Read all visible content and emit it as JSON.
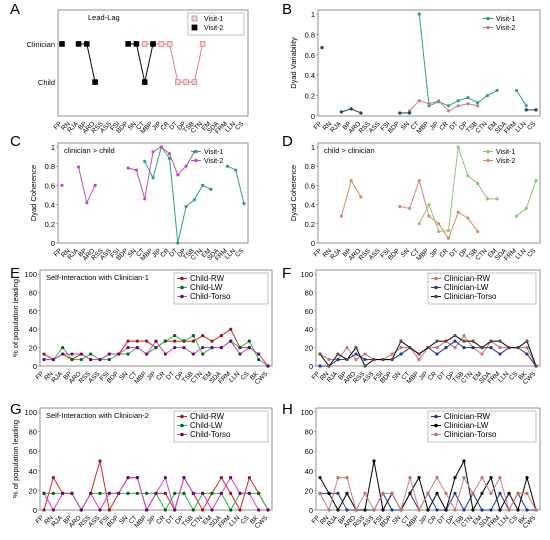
{
  "chart_data": [
    {
      "id": "A",
      "type": "line",
      "title": "Lead-Lag",
      "categories": [
        "FP",
        "RN",
        "RJA",
        "BP",
        "ARO",
        "RSS",
        "ASS",
        "FSI",
        "BDP",
        "SN",
        "CT",
        "MBP",
        "JIP",
        "CR",
        "DT",
        "DP",
        "TSB",
        "CTN",
        "EM",
        "SDA",
        "FRM",
        "LLN",
        "CS"
      ],
      "yticks": [
        "Child",
        "Clinician"
      ],
      "ylim": [
        0,
        1
      ],
      "series": [
        {
          "name": "Visit-1",
          "color": "#e07b7b",
          "marker": "#e8c3c3",
          "values": [
            null,
            null,
            null,
            null,
            null,
            null,
            null,
            null,
            null,
            null,
            1,
            1,
            1,
            1,
            0,
            0,
            0,
            1,
            null,
            null,
            null,
            null,
            null
          ]
        },
        {
          "name": "Visit-2",
          "color": "#000000",
          "marker": "#000000",
          "values": [
            1,
            null,
            1,
            1,
            0,
            null,
            null,
            null,
            1,
            1,
            0,
            1,
            null,
            null,
            null,
            null,
            null,
            null,
            null,
            null,
            null,
            null,
            null
          ]
        }
      ],
      "legend": "top-right"
    },
    {
      "id": "B",
      "type": "line",
      "ylabel": "Dyad Variability",
      "categories": [
        "FP",
        "RN",
        "RJA",
        "BP",
        "ARO",
        "RSS",
        "ASS",
        "FSI",
        "BDP",
        "SN",
        "CT",
        "MBP",
        "JIP",
        "CR",
        "DT",
        "DP",
        "TSB",
        "CTN",
        "EM",
        "SDA",
        "FRM",
        "LLN",
        "CS"
      ],
      "yticks": [
        0,
        0.2,
        0.4,
        0.6,
        0.8,
        1
      ],
      "ylim": [
        0,
        1
      ],
      "series": [
        {
          "name": "Visit-1",
          "color": "#2e9e88",
          "values": [
            null,
            null,
            null,
            null,
            null,
            null,
            null,
            null,
            null,
            null,
            1.0,
            0.1,
            0.14,
            0.1,
            0.15,
            0.18,
            0.13,
            0.2,
            0.25,
            null,
            0.25,
            0.1,
            null
          ]
        },
        {
          "name": "Visit-2",
          "color": "#c77f7f",
          "values": [
            null,
            null,
            null,
            null,
            null,
            null,
            null,
            null,
            null,
            0.05,
            0.15,
            0.12,
            0.15,
            0.05,
            0.1,
            0.12,
            0.1,
            null,
            null,
            null,
            null,
            null,
            0.06
          ]
        },
        {
          "name": "",
          "color": "#1e3f5a",
          "values": [
            0.67,
            null,
            0.04,
            0.07,
            0.03,
            null,
            null,
            null,
            0.03,
            0.03,
            null,
            null,
            null,
            null,
            null,
            null,
            null,
            null,
            null,
            null,
            null,
            0.06,
            0.06
          ]
        }
      ],
      "legend": "top-right"
    },
    {
      "id": "C",
      "type": "line",
      "title": "clinician > child",
      "ylabel": "Dyad Coherence",
      "categories": [
        "FP",
        "RN",
        "RJA",
        "BP",
        "ARO",
        "RSS",
        "ASS",
        "FSI",
        "BDP",
        "SN",
        "CT",
        "MBP",
        "JIP",
        "CR",
        "DT",
        "DP",
        "TSB",
        "CTN",
        "EM",
        "SDA",
        "FRM",
        "LLN",
        "CS"
      ],
      "yticks": [
        0,
        0.2,
        0.4,
        0.6,
        0.8,
        1
      ],
      "ylim": [
        0,
        1
      ],
      "series": [
        {
          "name": "Visit-1",
          "color": "#2e9e88",
          "values": [
            null,
            null,
            null,
            null,
            null,
            null,
            null,
            null,
            null,
            null,
            0.85,
            0.68,
            1.0,
            0.88,
            0.0,
            0.38,
            0.45,
            0.6,
            0.56,
            null,
            0.8,
            0.76,
            0.41
          ]
        },
        {
          "name": "Visit-2",
          "color": "#c04bc0",
          "values": [
            0.6,
            null,
            0.79,
            0.42,
            0.6,
            null,
            null,
            null,
            0.78,
            0.76,
            0.46,
            0.95,
            1.0,
            0.93,
            0.71,
            0.8,
            0.95,
            null,
            null,
            null,
            null,
            null,
            null
          ]
        }
      ],
      "legend": "top-right"
    },
    {
      "id": "D",
      "type": "line",
      "title": "child > clinician",
      "ylabel": "Dyad Coherence",
      "categories": [
        "FP",
        "RN",
        "RJA",
        "BP",
        "ARO",
        "RSS",
        "ASS",
        "FSI",
        "BDP",
        "SN",
        "CT",
        "MBP",
        "JIP",
        "CR",
        "DT",
        "DP",
        "TSB",
        "CTN",
        "EM",
        "SDA",
        "FRM",
        "LLN",
        "CS"
      ],
      "yticks": [
        0,
        0.2,
        0.4,
        0.6,
        0.8,
        1
      ],
      "ylim": [
        0,
        1
      ],
      "series": [
        {
          "name": "Visit-1",
          "color": "#8cc47a",
          "values": [
            null,
            null,
            null,
            null,
            null,
            null,
            null,
            null,
            null,
            null,
            0.2,
            0.4,
            0.12,
            0.13,
            1.0,
            0.7,
            0.62,
            0.46,
            0.46,
            null,
            0.28,
            0.36,
            0.65
          ]
        },
        {
          "name": "Visit-2",
          "color": "#d98a6a",
          "values": [
            null,
            null,
            0.28,
            0.65,
            0.48,
            null,
            null,
            null,
            0.38,
            0.36,
            0.65,
            0.28,
            0.2,
            0.05,
            0.32,
            0.26,
            0.12,
            null,
            null,
            null,
            null,
            null,
            null
          ]
        }
      ],
      "legend": "top-right"
    },
    {
      "id": "E",
      "type": "line",
      "title": "Self-Interaction with Clinician-1",
      "ylabel": "% of population leading",
      "categories": [
        "FP",
        "RN",
        "RJA",
        "BP",
        "ARO",
        "RSS",
        "ASS",
        "FSI",
        "BDP",
        "SN",
        "CT",
        "MBP",
        "JIP",
        "CR",
        "DT",
        "DP",
        "TSB",
        "CTN",
        "EM",
        "SDA",
        "FRM",
        "LLN",
        "CS",
        "BK",
        "CWS"
      ],
      "yticks": [
        0,
        20,
        40,
        60,
        80,
        100
      ],
      "ylim": [
        0,
        100
      ],
      "series": [
        {
          "name": "Child-RW",
          "color": "#e02020",
          "marker": "#8b1a1a",
          "values": [
            13,
            7,
            13,
            7,
            13,
            7,
            7,
            13,
            13,
            27,
            27,
            27,
            20,
            27,
            27,
            27,
            27,
            33,
            27,
            33,
            40,
            20,
            20,
            13,
            0
          ]
        },
        {
          "name": "Child-LW",
          "color": "#20c040",
          "marker": "#0a5a1a",
          "values": [
            7,
            7,
            20,
            7,
            7,
            13,
            7,
            7,
            13,
            13,
            20,
            13,
            20,
            27,
            33,
            27,
            33,
            13,
            20,
            20,
            27,
            20,
            27,
            7,
            0
          ]
        },
        {
          "name": "Child-Torso",
          "color": "#d040d0",
          "marker": "#601060",
          "values": [
            7,
            7,
            13,
            13,
            13,
            7,
            7,
            13,
            13,
            20,
            20,
            13,
            27,
            13,
            20,
            20,
            13,
            20,
            20,
            20,
            27,
            13,
            20,
            13,
            0
          ]
        }
      ],
      "legend": "top-right"
    },
    {
      "id": "F",
      "type": "line",
      "categories": [
        "FP",
        "RN",
        "RJA",
        "BP",
        "ARO",
        "RSS",
        "ASS",
        "FSI",
        "BDP",
        "SN",
        "CT",
        "MBP",
        "JIP",
        "CR",
        "DT",
        "DP",
        "TSB",
        "CTN",
        "EM",
        "SDA",
        "FRM",
        "LLN",
        "CS",
        "BK",
        "CWS"
      ],
      "yticks": [
        0,
        20,
        40,
        60,
        80,
        100
      ],
      "ylim": [
        0,
        100
      ],
      "series": [
        {
          "name": "Clinician-RW",
          "color": "#d07070",
          "marker": "#d07070",
          "values": [
            13,
            7,
            7,
            20,
            7,
            13,
            7,
            7,
            13,
            20,
            20,
            7,
            20,
            20,
            27,
            20,
            33,
            20,
            13,
            27,
            20,
            20,
            20,
            20,
            0
          ]
        },
        {
          "name": "Clinician-LW",
          "color": "#1a3a9a",
          "marker": "#1a3a9a",
          "values": [
            0,
            0,
            7,
            7,
            13,
            7,
            7,
            7,
            7,
            13,
            20,
            13,
            20,
            13,
            20,
            27,
            20,
            20,
            20,
            20,
            13,
            20,
            20,
            13,
            0
          ]
        },
        {
          "name": "Clinician-Torso",
          "color": "#000000",
          "marker": "#6a4040",
          "values": [
            13,
            0,
            13,
            7,
            20,
            0,
            7,
            7,
            7,
            27,
            20,
            13,
            20,
            27,
            27,
            33,
            27,
            27,
            20,
            27,
            27,
            20,
            20,
            27,
            0
          ]
        }
      ],
      "legend": "top-right"
    },
    {
      "id": "G",
      "type": "line",
      "title": "Self-Interaction with Clinician-2",
      "ylabel": "% of population leading",
      "categories": [
        "FP",
        "RN",
        "RJA",
        "BP",
        "ARO",
        "RSS",
        "ASS",
        "FSI",
        "BDP",
        "SN",
        "CT",
        "MBP",
        "JIP",
        "CR",
        "DT",
        "DP",
        "TSB",
        "CTN",
        "EM",
        "SDA",
        "FRM",
        "LLN",
        "CS",
        "BK",
        "CWS"
      ],
      "yticks": [
        0,
        20,
        40,
        60,
        80,
        100
      ],
      "ylim": [
        0,
        100
      ],
      "series": [
        {
          "name": "Child-RW",
          "color": "#e02020",
          "marker": "#8b1a1a",
          "values": [
            0,
            33,
            17,
            17,
            0,
            17,
            50,
            0,
            17,
            33,
            33,
            0,
            17,
            17,
            0,
            33,
            17,
            0,
            17,
            33,
            17,
            0,
            33,
            17,
            0
          ]
        },
        {
          "name": "Child-LW",
          "color": "#20c040",
          "marker": "#0a5a1a",
          "values": [
            17,
            17,
            17,
            17,
            0,
            17,
            17,
            17,
            17,
            17,
            17,
            17,
            17,
            0,
            17,
            17,
            0,
            17,
            17,
            17,
            0,
            17,
            17,
            17,
            0
          ]
        },
        {
          "name": "Child-Torso",
          "color": "#d040d0",
          "marker": "#601060",
          "values": [
            17,
            0,
            17,
            17,
            0,
            17,
            0,
            17,
            17,
            33,
            33,
            0,
            17,
            33,
            0,
            33,
            17,
            17,
            0,
            17,
            33,
            17,
            17,
            0,
            0
          ]
        }
      ],
      "legend": "top-right"
    },
    {
      "id": "H",
      "type": "line",
      "categories": [
        "FP",
        "RN",
        "RJA",
        "BP",
        "ARO",
        "RSS",
        "ASS",
        "FSI",
        "BDP",
        "SN",
        "CT",
        "MBP",
        "JIP",
        "CR",
        "DT",
        "DP",
        "TSB",
        "CTN",
        "EM",
        "SDA",
        "FRM",
        "LLN",
        "CS",
        "BK",
        "CWS"
      ],
      "yticks": [
        0,
        20,
        40,
        60,
        80,
        100
      ],
      "ylim": [
        0,
        100
      ],
      "series": [
        {
          "name": "Clinician-RW",
          "color": "#1a3a9a",
          "marker": "#1a3a9a",
          "values": [
            17,
            17,
            17,
            0,
            0,
            0,
            0,
            17,
            0,
            0,
            17,
            0,
            17,
            0,
            0,
            17,
            0,
            17,
            0,
            0,
            17,
            0,
            17,
            0,
            0
          ]
        },
        {
          "name": "Clinician-LW",
          "color": "#000000",
          "marker": "#000000",
          "values": [
            33,
            17,
            0,
            17,
            0,
            0,
            50,
            0,
            17,
            0,
            17,
            33,
            0,
            17,
            0,
            33,
            50,
            0,
            17,
            33,
            0,
            17,
            0,
            33,
            0
          ]
        },
        {
          "name": "Clinician-Torso",
          "color": "#d08080",
          "marker": "#c07060",
          "values": [
            17,
            0,
            33,
            33,
            0,
            17,
            0,
            17,
            17,
            0,
            33,
            0,
            17,
            33,
            17,
            0,
            33,
            17,
            33,
            17,
            33,
            0,
            17,
            17,
            0
          ]
        }
      ],
      "legend": "top-right"
    }
  ]
}
